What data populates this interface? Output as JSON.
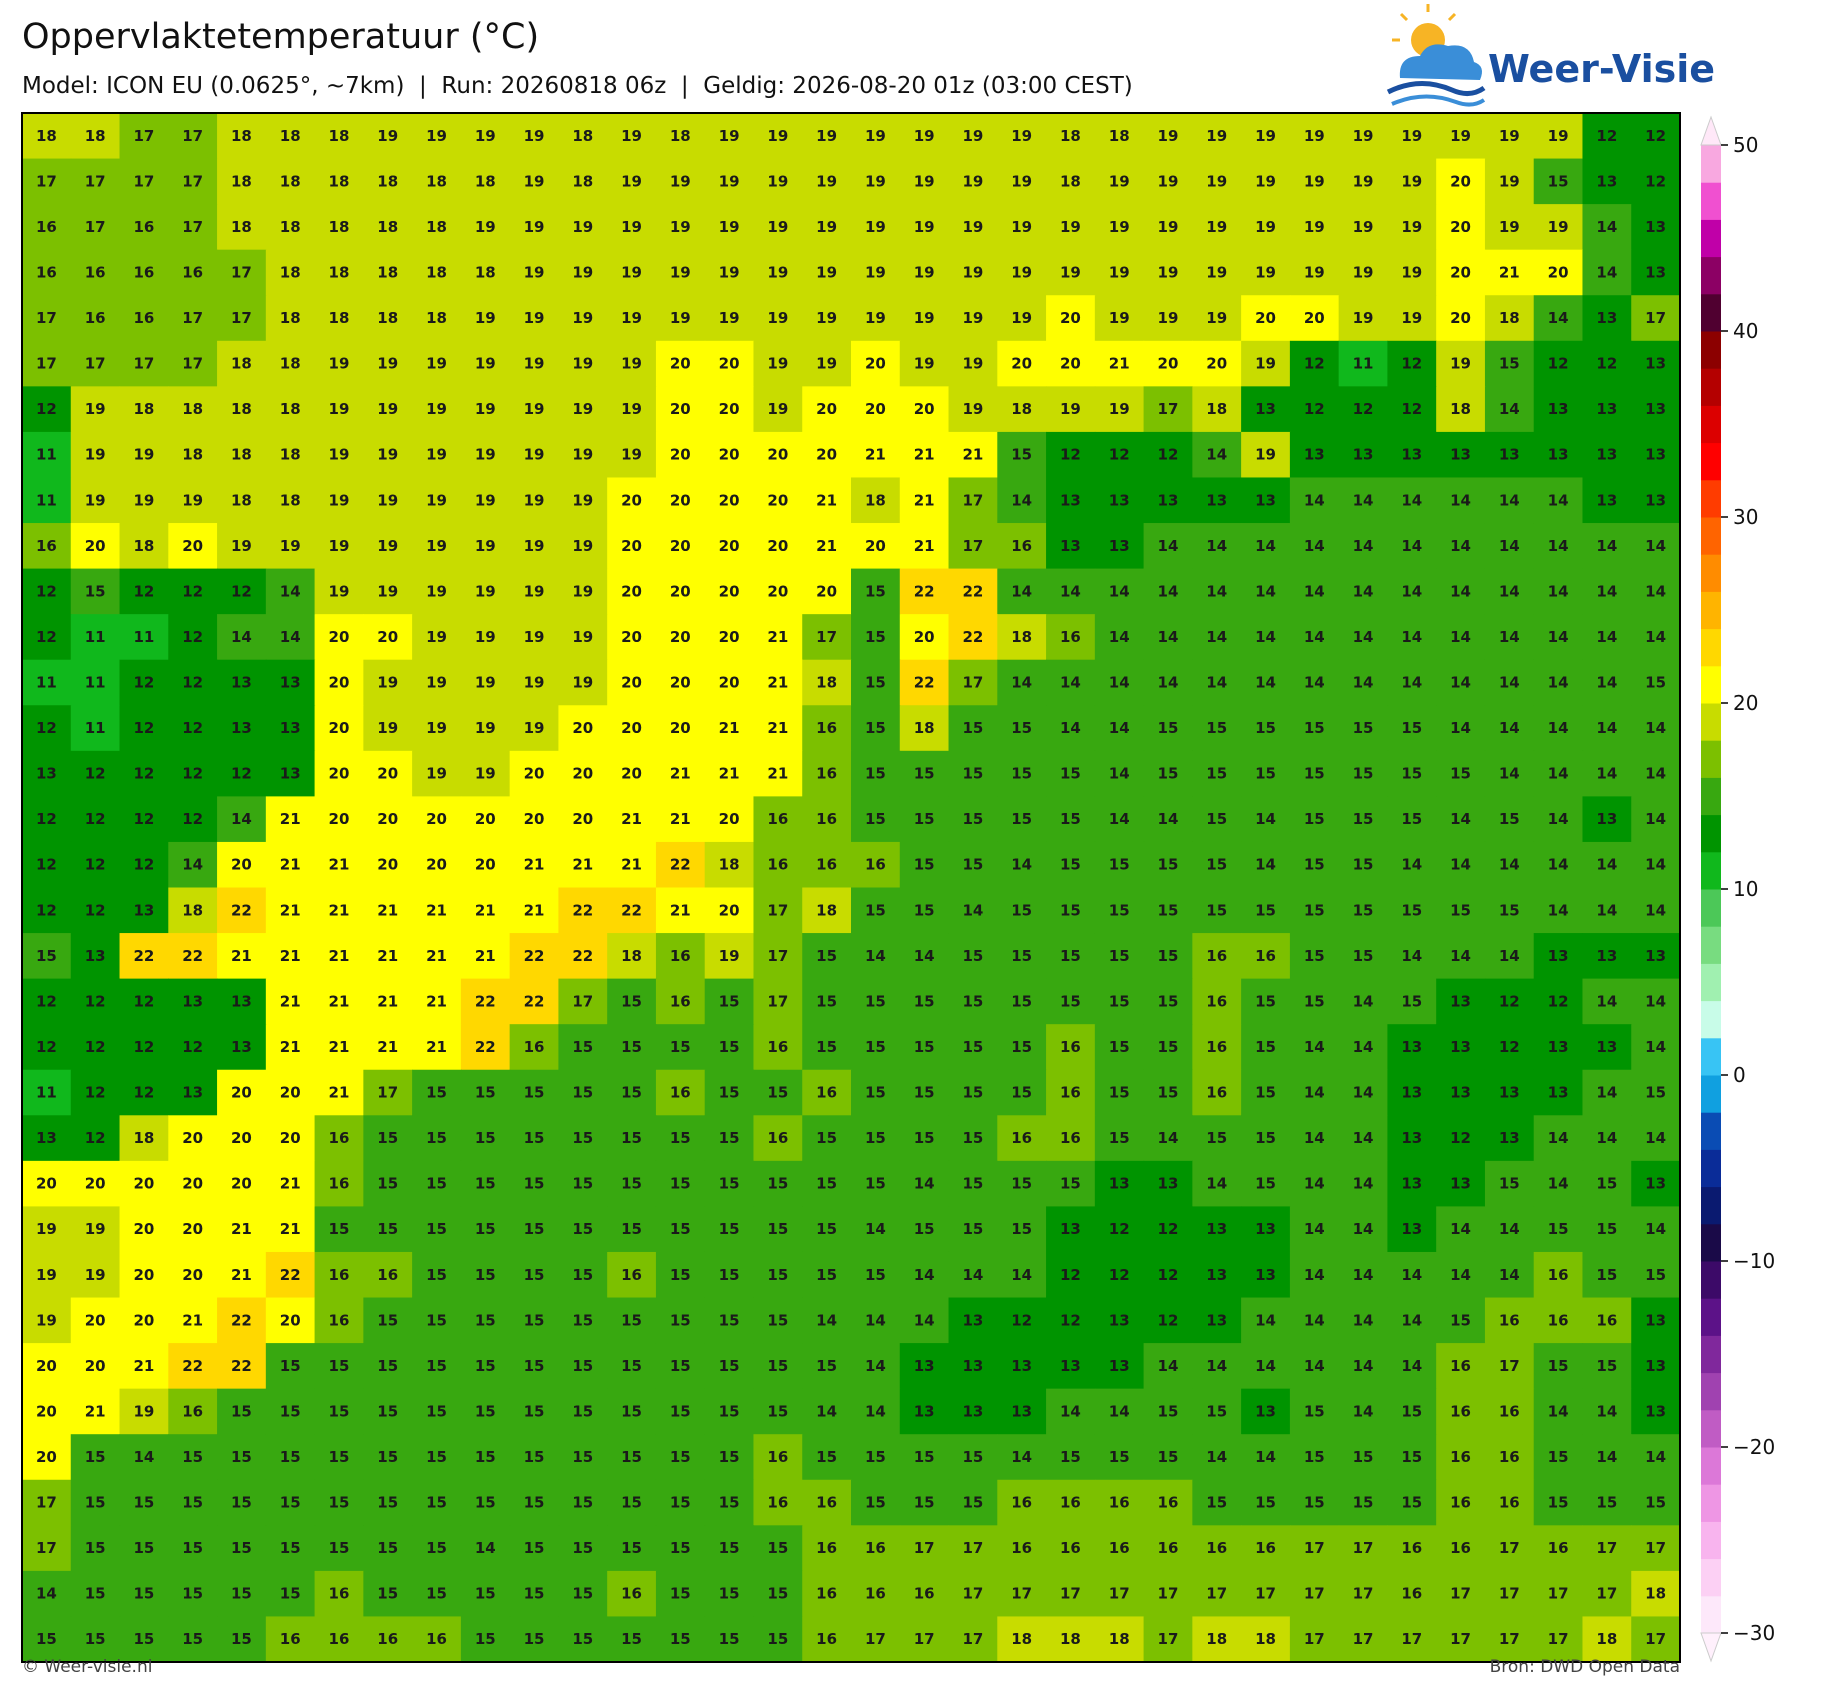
{
  "header": {
    "title": "Oppervlaktetemperatuur (°C)",
    "subtitle": "Model: ICON EU (0.0625°, ~7km)  |  Run: 20260818 06z  |  Geldig: 2026-08-20 01z (03:00 CEST)"
  },
  "logo": {
    "text": "Weer-Visie"
  },
  "footer": {
    "left": "© Weer-visie.nl",
    "right": "Bron: DWD Open Data"
  },
  "colorbar": {
    "ylim": [
      -30,
      50
    ],
    "yticks": [
      {
        "value": -30,
        "label": "−30"
      },
      {
        "value": -20,
        "label": "−20"
      },
      {
        "value": -10,
        "label": "−10"
      },
      0,
      10,
      20,
      30,
      40,
      50
    ],
    "colors": [
      "#fde8fa",
      "#fcd0f4",
      "#f8b4ee",
      "#ee96e4",
      "#dc78d8",
      "#c05cc4",
      "#a042b0",
      "#80289c",
      "#5c1288",
      "#3c0a68",
      "#1a0a48",
      "#0a1a70",
      "#0a2c98",
      "#0a4cb4",
      "#10a0e0",
      "#38c4f4",
      "#c8fce8",
      "#a0f0b0",
      "#78dc80",
      "#4cc858",
      "#10b81c",
      "#009400",
      "#38a810",
      "#7cc000",
      "#c8dc00",
      "#ffff00",
      "#ffd800",
      "#ffb400",
      "#ff8c00",
      "#ff6400",
      "#ff3c00",
      "#ff0000",
      "#dc0000",
      "#b40000",
      "#8c0000",
      "#500030",
      "#8c0064",
      "#c000a8",
      "#f050d0",
      "#f8a8e0"
    ],
    "extend_colors": [
      "#fff0fc",
      "#ffe8f8"
    ]
  },
  "grid": {
    "rows": [
      [
        18,
        18,
        17,
        17,
        18,
        18,
        18,
        19,
        19,
        19,
        19,
        18,
        19,
        18,
        19,
        19,
        19,
        19,
        19,
        19,
        19,
        18,
        18,
        19,
        19,
        19,
        19,
        19,
        19,
        19,
        19,
        19,
        12,
        12
      ],
      [
        17,
        17,
        17,
        17,
        18,
        18,
        18,
        18,
        18,
        18,
        19,
        18,
        19,
        19,
        19,
        19,
        19,
        19,
        19,
        19,
        19,
        18,
        19,
        19,
        19,
        19,
        19,
        19,
        19,
        20,
        19,
        15,
        13,
        12
      ],
      [
        16,
        17,
        16,
        17,
        18,
        18,
        18,
        18,
        18,
        19,
        19,
        19,
        19,
        19,
        19,
        19,
        19,
        19,
        19,
        19,
        19,
        19,
        19,
        19,
        19,
        19,
        19,
        19,
        19,
        20,
        19,
        19,
        14,
        13
      ],
      [
        16,
        16,
        16,
        16,
        17,
        18,
        18,
        18,
        18,
        18,
        19,
        19,
        19,
        19,
        19,
        19,
        19,
        19,
        19,
        19,
        19,
        19,
        19,
        19,
        19,
        19,
        19,
        19,
        19,
        20,
        21,
        20,
        14,
        13
      ],
      [
        17,
        16,
        16,
        17,
        17,
        18,
        18,
        18,
        18,
        19,
        19,
        19,
        19,
        19,
        19,
        19,
        19,
        19,
        19,
        19,
        19,
        20,
        19,
        19,
        19,
        20,
        20,
        19,
        19,
        20,
        18,
        14,
        13,
        17
      ],
      [
        17,
        17,
        17,
        17,
        18,
        18,
        19,
        19,
        19,
        19,
        19,
        19,
        19,
        20,
        20,
        19,
        19,
        20,
        19,
        19,
        20,
        20,
        21,
        20,
        20,
        19,
        12,
        11,
        12,
        19,
        15,
        12,
        12,
        13
      ],
      [
        12,
        19,
        18,
        18,
        18,
        18,
        19,
        19,
        19,
        19,
        19,
        19,
        19,
        20,
        20,
        19,
        20,
        20,
        20,
        19,
        18,
        19,
        19,
        17,
        18,
        13,
        12,
        12,
        12,
        18,
        14,
        13,
        13,
        13
      ],
      [
        11,
        19,
        19,
        18,
        18,
        18,
        19,
        19,
        19,
        19,
        19,
        19,
        19,
        20,
        20,
        20,
        20,
        21,
        21,
        21,
        15,
        12,
        12,
        12,
        14,
        19,
        13,
        13,
        13,
        13,
        13,
        13,
        13,
        13
      ],
      [
        11,
        19,
        19,
        19,
        18,
        18,
        19,
        19,
        19,
        19,
        19,
        19,
        20,
        20,
        20,
        20,
        21,
        18,
        21,
        17,
        14,
        13,
        13,
        13,
        13,
        13,
        14,
        14,
        14,
        14,
        14,
        14,
        13,
        13
      ],
      [
        16,
        20,
        18,
        20,
        19,
        19,
        19,
        19,
        19,
        19,
        19,
        19,
        20,
        20,
        20,
        20,
        21,
        20,
        21,
        17,
        16,
        13,
        13,
        14,
        14,
        14,
        14,
        14,
        14,
        14,
        14,
        14,
        14,
        14
      ],
      [
        12,
        15,
        12,
        12,
        12,
        14,
        19,
        19,
        19,
        19,
        19,
        19,
        20,
        20,
        20,
        20,
        20,
        15,
        22,
        22,
        14,
        14,
        14,
        14,
        14,
        14,
        14,
        14,
        14,
        14,
        14,
        14,
        14,
        14
      ],
      [
        12,
        11,
        11,
        12,
        14,
        14,
        20,
        20,
        19,
        19,
        19,
        19,
        20,
        20,
        20,
        21,
        17,
        15,
        20,
        22,
        18,
        16,
        14,
        14,
        14,
        14,
        14,
        14,
        14,
        14,
        14,
        14,
        14,
        14
      ],
      [
        11,
        11,
        12,
        12,
        13,
        13,
        20,
        19,
        19,
        19,
        19,
        19,
        20,
        20,
        20,
        21,
        18,
        15,
        22,
        17,
        14,
        14,
        14,
        14,
        14,
        14,
        14,
        14,
        14,
        14,
        14,
        14,
        14,
        15
      ],
      [
        12,
        11,
        12,
        12,
        13,
        13,
        20,
        19,
        19,
        19,
        19,
        20,
        20,
        20,
        21,
        21,
        16,
        15,
        18,
        15,
        15,
        14,
        14,
        15,
        15,
        15,
        15,
        15,
        15,
        14,
        14,
        14,
        14,
        14
      ],
      [
        13,
        12,
        12,
        12,
        12,
        13,
        20,
        20,
        19,
        19,
        20,
        20,
        20,
        21,
        21,
        21,
        16,
        15,
        15,
        15,
        15,
        15,
        14,
        15,
        15,
        15,
        15,
        15,
        15,
        15,
        14,
        14,
        14,
        14
      ],
      [
        12,
        12,
        12,
        12,
        14,
        21,
        20,
        20,
        20,
        20,
        20,
        20,
        21,
        21,
        20,
        16,
        16,
        15,
        15,
        15,
        15,
        15,
        14,
        14,
        15,
        14,
        15,
        15,
        15,
        14,
        15,
        14,
        13,
        14
      ],
      [
        12,
        12,
        12,
        14,
        20,
        21,
        21,
        20,
        20,
        20,
        21,
        21,
        21,
        22,
        18,
        16,
        16,
        16,
        15,
        15,
        14,
        15,
        15,
        15,
        15,
        14,
        15,
        15,
        14,
        14,
        14,
        14,
        14,
        14
      ],
      [
        12,
        12,
        13,
        18,
        22,
        21,
        21,
        21,
        21,
        21,
        21,
        22,
        22,
        21,
        20,
        17,
        18,
        15,
        15,
        14,
        15,
        15,
        15,
        15,
        15,
        15,
        15,
        15,
        15,
        15,
        15,
        14,
        14,
        14
      ],
      [
        15,
        13,
        22,
        22,
        21,
        21,
        21,
        21,
        21,
        21,
        22,
        22,
        18,
        16,
        19,
        17,
        15,
        14,
        14,
        15,
        15,
        15,
        15,
        15,
        16,
        16,
        15,
        15,
        14,
        14,
        14,
        13,
        13,
        13
      ],
      [
        12,
        12,
        12,
        13,
        13,
        21,
        21,
        21,
        21,
        22,
        22,
        17,
        15,
        16,
        15,
        17,
        15,
        15,
        15,
        15,
        15,
        15,
        15,
        15,
        16,
        15,
        15,
        14,
        15,
        13,
        12,
        12,
        14,
        14
      ],
      [
        12,
        12,
        12,
        12,
        13,
        21,
        21,
        21,
        21,
        22,
        16,
        15,
        15,
        15,
        15,
        16,
        15,
        15,
        15,
        15,
        15,
        16,
        15,
        15,
        16,
        15,
        14,
        14,
        13,
        13,
        12,
        13,
        13,
        14
      ],
      [
        11,
        12,
        12,
        13,
        20,
        20,
        21,
        17,
        15,
        15,
        15,
        15,
        15,
        16,
        15,
        15,
        16,
        15,
        15,
        15,
        15,
        16,
        15,
        15,
        16,
        15,
        14,
        14,
        13,
        13,
        13,
        13,
        14,
        15
      ],
      [
        13,
        12,
        18,
        20,
        20,
        20,
        16,
        15,
        15,
        15,
        15,
        15,
        15,
        15,
        15,
        16,
        15,
        15,
        15,
        15,
        16,
        16,
        15,
        14,
        15,
        15,
        14,
        14,
        13,
        12,
        13,
        14,
        14,
        14
      ],
      [
        20,
        20,
        20,
        20,
        20,
        21,
        16,
        15,
        15,
        15,
        15,
        15,
        15,
        15,
        15,
        15,
        15,
        15,
        14,
        15,
        15,
        15,
        13,
        13,
        14,
        15,
        14,
        14,
        13,
        13,
        15,
        14,
        15,
        13
      ],
      [
        19,
        19,
        20,
        20,
        21,
        21,
        15,
        15,
        15,
        15,
        15,
        15,
        15,
        15,
        15,
        15,
        15,
        14,
        15,
        15,
        15,
        13,
        12,
        12,
        13,
        13,
        14,
        14,
        13,
        14,
        14,
        15,
        15,
        14
      ],
      [
        19,
        19,
        20,
        20,
        21,
        22,
        16,
        16,
        15,
        15,
        15,
        15,
        16,
        15,
        15,
        15,
        15,
        15,
        14,
        14,
        14,
        12,
        12,
        12,
        13,
        13,
        14,
        14,
        14,
        14,
        14,
        16,
        15,
        15
      ],
      [
        19,
        20,
        20,
        21,
        22,
        20,
        16,
        15,
        15,
        15,
        15,
        15,
        15,
        15,
        15,
        15,
        14,
        14,
        14,
        13,
        12,
        12,
        13,
        12,
        13,
        14,
        14,
        14,
        14,
        15,
        16,
        16,
        16,
        13
      ],
      [
        20,
        20,
        21,
        22,
        22,
        15,
        15,
        15,
        15,
        15,
        15,
        15,
        15,
        15,
        15,
        15,
        15,
        14,
        13,
        13,
        13,
        13,
        13,
        14,
        14,
        14,
        14,
        14,
        14,
        16,
        17,
        15,
        15,
        13
      ],
      [
        20,
        21,
        19,
        16,
        15,
        15,
        15,
        15,
        15,
        15,
        15,
        15,
        15,
        15,
        15,
        15,
        14,
        14,
        13,
        13,
        13,
        14,
        14,
        15,
        15,
        13,
        15,
        14,
        15,
        16,
        16,
        14,
        14,
        13
      ],
      [
        20,
        15,
        14,
        15,
        15,
        15,
        15,
        15,
        15,
        15,
        15,
        15,
        15,
        15,
        15,
        16,
        15,
        15,
        15,
        15,
        14,
        15,
        15,
        15,
        14,
        14,
        15,
        15,
        15,
        16,
        16,
        15,
        14,
        14
      ],
      [
        17,
        15,
        15,
        15,
        15,
        15,
        15,
        15,
        15,
        15,
        15,
        15,
        15,
        15,
        15,
        16,
        16,
        15,
        15,
        15,
        16,
        16,
        16,
        16,
        15,
        15,
        15,
        15,
        15,
        16,
        16,
        15,
        15,
        15
      ],
      [
        17,
        15,
        15,
        15,
        15,
        15,
        15,
        15,
        15,
        14,
        15,
        15,
        15,
        15,
        15,
        15,
        16,
        16,
        17,
        17,
        16,
        16,
        16,
        16,
        16,
        16,
        17,
        17,
        16,
        16,
        17,
        16,
        17,
        17
      ],
      [
        14,
        15,
        15,
        15,
        15,
        15,
        16,
        15,
        15,
        15,
        15,
        15,
        16,
        15,
        15,
        15,
        16,
        16,
        16,
        17,
        17,
        17,
        17,
        17,
        17,
        17,
        17,
        17,
        16,
        17,
        17,
        17,
        17,
        18
      ],
      [
        15,
        15,
        15,
        15,
        15,
        16,
        16,
        16,
        16,
        15,
        15,
        15,
        15,
        15,
        15,
        15,
        16,
        17,
        17,
        17,
        18,
        18,
        18,
        17,
        18,
        18,
        17,
        17,
        17,
        17,
        17,
        17,
        18,
        17
      ]
    ]
  }
}
